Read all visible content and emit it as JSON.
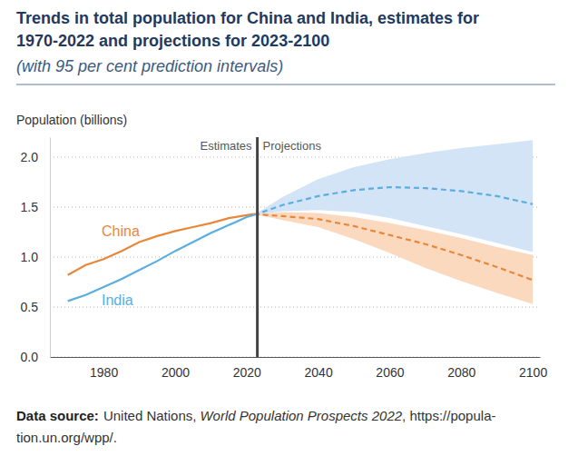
{
  "chart_data": {
    "type": "line",
    "title": "Trends in total population for China and India, estimates for 1970-2022 and projections for 2023-2100",
    "subtitle": "(with 95 per cent prediction intervals)",
    "y_label": "Population (billions)",
    "divider": {
      "x": 2023,
      "labels": [
        "Estimates",
        "Projections"
      ]
    },
    "source": {
      "label": "Data source:",
      "lines": [
        [
          "United Nations,",
          "World Population Prospects 2022",
          ", https://popula-"
        ],
        [
          "tion.un.org/wpp/."
        ]
      ]
    },
    "x": [
      1970,
      1975,
      1980,
      1985,
      1990,
      1995,
      2000,
      2005,
      2010,
      2015,
      2020,
      2022,
      2030,
      2040,
      2050,
      2060,
      2070,
      2080,
      2090,
      2100
    ],
    "series": [
      {
        "name": "China",
        "color": "#e8873a",
        "band_color": "#fbd9bf",
        "values": [
          0.82,
          0.92,
          0.98,
          1.06,
          1.15,
          1.21,
          1.26,
          1.3,
          1.34,
          1.39,
          1.42,
          1.43,
          null,
          null,
          null,
          null,
          null,
          null,
          null,
          null
        ],
        "projected": [
          null,
          null,
          null,
          null,
          null,
          null,
          null,
          null,
          null,
          null,
          null,
          1.43,
          1.41,
          1.38,
          1.31,
          1.22,
          1.13,
          1.02,
          0.9,
          0.77
        ],
        "lower": [
          null,
          null,
          null,
          null,
          null,
          null,
          null,
          null,
          null,
          null,
          null,
          1.43,
          1.37,
          1.3,
          1.18,
          1.04,
          0.89,
          0.76,
          0.64,
          0.53
        ],
        "upper": [
          null,
          null,
          null,
          null,
          null,
          null,
          null,
          null,
          null,
          null,
          null,
          1.43,
          1.45,
          1.44,
          1.4,
          1.34,
          1.27,
          1.19,
          1.1,
          1.02
        ]
      },
      {
        "name": "India",
        "color": "#5aaee0",
        "band_color": "#d3e4f6",
        "values": [
          0.56,
          0.62,
          0.7,
          0.78,
          0.87,
          0.96,
          1.06,
          1.15,
          1.24,
          1.32,
          1.4,
          1.42,
          null,
          null,
          null,
          null,
          null,
          null,
          null,
          null
        ],
        "projected": [
          null,
          null,
          null,
          null,
          null,
          null,
          null,
          null,
          null,
          null,
          null,
          1.42,
          1.52,
          1.61,
          1.67,
          1.7,
          1.69,
          1.66,
          1.61,
          1.53
        ],
        "lower": [
          null,
          null,
          null,
          null,
          null,
          null,
          null,
          null,
          null,
          null,
          null,
          1.42,
          1.46,
          1.47,
          1.45,
          1.39,
          1.31,
          1.23,
          1.14,
          1.05
        ],
        "upper": [
          null,
          null,
          null,
          null,
          null,
          null,
          null,
          null,
          null,
          null,
          null,
          1.42,
          1.6,
          1.78,
          1.9,
          1.98,
          2.04,
          2.09,
          2.13,
          2.17
        ]
      }
    ],
    "xlim": [
      1965,
      2102
    ],
    "xticks": [
      1980,
      2000,
      2020,
      2040,
      2060,
      2080,
      2100
    ],
    "ylim": [
      0,
      2.2
    ],
    "yticks": [
      {
        "value": 0,
        "label": "0.0"
      },
      0.5,
      {
        "value": 1,
        "label": "1.0"
      },
      1.5,
      {
        "value": 2,
        "label": "2.0"
      }
    ],
    "grid": true,
    "legend": false
  }
}
